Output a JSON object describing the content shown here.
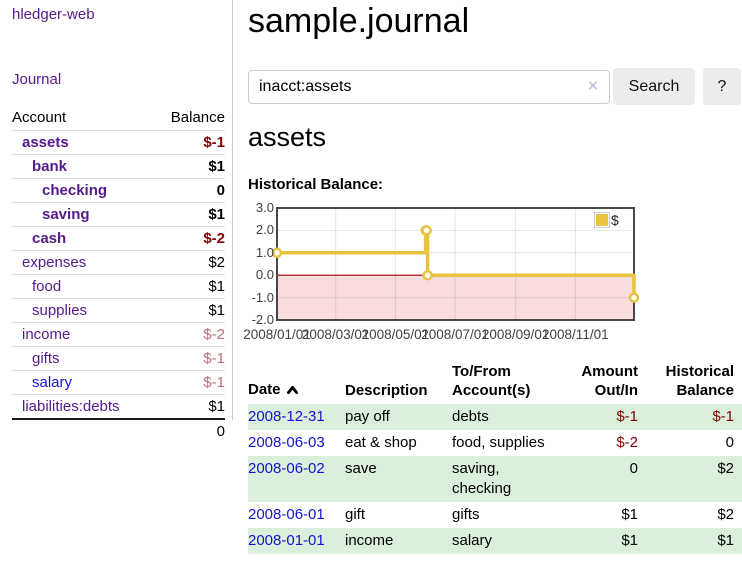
{
  "colors": {
    "link_purple": "#551a8b",
    "link_blue": "#1414d4",
    "negative_strong": "#880000",
    "negative_soft": "#c06c7c",
    "row_highlight_green": "#dceedc",
    "series_yellow": "#e8c33f",
    "zero_line_red": "#990000",
    "negative_region_pink": "#f9dcdc",
    "button_gray": "#ececec"
  },
  "icons": {
    "sort": "chevron-up-icon",
    "clear_search": "x-icon",
    "legend_swatch": "yellow-square-icon"
  },
  "sidebar": {
    "app_title": "hledger-web",
    "journal_link": "Journal",
    "accounts": {
      "col_account": "Account",
      "col_balance": "Balance",
      "rows": [
        {
          "name": "assets",
          "depth": 1,
          "bold": true,
          "link_color": "purple",
          "balance": "$-1",
          "balance_class": "neg-strong b"
        },
        {
          "name": "bank",
          "depth": 2,
          "bold": true,
          "link_color": "purple",
          "balance": "$1",
          "balance_class": "b"
        },
        {
          "name": "checking",
          "depth": 3,
          "bold": true,
          "link_color": "purple",
          "balance": "0",
          "balance_class": "b"
        },
        {
          "name": "saving",
          "depth": 3,
          "bold": true,
          "link_color": "purple",
          "balance": "$1",
          "balance_class": "b"
        },
        {
          "name": "cash",
          "depth": 2,
          "bold": true,
          "link_color": "purple",
          "balance": "$-2",
          "balance_class": "neg-strong b"
        },
        {
          "name": "expenses",
          "depth": 1,
          "bold": false,
          "link_color": "purple",
          "balance": "$2",
          "balance_class": ""
        },
        {
          "name": "food",
          "depth": 2,
          "bold": false,
          "link_color": "purple",
          "balance": "$1",
          "balance_class": ""
        },
        {
          "name": "supplies",
          "depth": 2,
          "bold": false,
          "link_color": "purple",
          "balance": "$1",
          "balance_class": ""
        },
        {
          "name": "income",
          "depth": 1,
          "bold": false,
          "link_color": "purple",
          "balance": "$-2",
          "balance_class": "neg-soft"
        },
        {
          "name": "gifts",
          "depth": 2,
          "bold": false,
          "link_color": "purple",
          "balance": "$-1",
          "balance_class": "neg-soft"
        },
        {
          "name": "salary",
          "depth": 2,
          "bold": false,
          "link_color": "blue",
          "balance": "$-1",
          "balance_class": "neg-soft"
        },
        {
          "name": "liabilities:debts",
          "depth": 1,
          "bold": false,
          "link_color": "purple",
          "balance": "$1",
          "balance_class": ""
        }
      ],
      "total": "0"
    }
  },
  "main": {
    "title": "sample.journal",
    "search": {
      "value": "inacct:assets",
      "clear_glyph": "×",
      "button_label": "Search",
      "help_label": "?"
    },
    "account_heading": "assets",
    "chart_title": "Historical Balance:"
  },
  "chart_data": {
    "type": "line",
    "step": true,
    "title": "Historical Balance:",
    "series": [
      {
        "name": "$",
        "color": "#e8c33f",
        "points": [
          [
            "2008/01/01",
            1
          ],
          [
            "2008/06/01",
            2
          ],
          [
            "2008/06/02",
            2
          ],
          [
            "2008/06/03",
            0
          ],
          [
            "2008/12/31",
            -1
          ]
        ]
      }
    ],
    "x_range": [
      "2008/01/01",
      "2008/12/31"
    ],
    "ylim": [
      -2,
      3
    ],
    "y_ticks": [
      "3.0",
      "2.0",
      "1.0",
      "0.0",
      "-1.0",
      "-2.0"
    ],
    "x_ticks": [
      "2008/01/01",
      "2008/03/01",
      "2008/05/01",
      "2008/07/01",
      "2008/09/01",
      "2008/11/01"
    ],
    "grid": true,
    "legend_position": "top-right",
    "legend_label": "$",
    "negative_region_shaded": true
  },
  "register": {
    "headers": {
      "date": "Date",
      "description": "Description",
      "tofrom": "To/From Account(s)",
      "amount": "Amount Out/In",
      "balance": "Historical Balance"
    },
    "rows": [
      {
        "date": "2008-12-31",
        "description": "pay off",
        "accounts": "debts",
        "amount": "$-1",
        "amount_neg": true,
        "balance": "$-1",
        "balance_neg": true,
        "highlight": true
      },
      {
        "date": "2008-06-03",
        "description": "eat & shop",
        "accounts": "food, supplies",
        "amount": "$-2",
        "amount_neg": true,
        "balance": "0",
        "balance_neg": false,
        "highlight": false
      },
      {
        "date": "2008-06-02",
        "description": "save",
        "accounts": "saving, checking",
        "amount": "0",
        "amount_neg": false,
        "balance": "$2",
        "balance_neg": false,
        "highlight": true
      },
      {
        "date": "2008-06-01",
        "description": "gift",
        "accounts": "gifts",
        "amount": "$1",
        "amount_neg": false,
        "balance": "$2",
        "balance_neg": false,
        "highlight": false
      },
      {
        "date": "2008-01-01",
        "description": "income",
        "accounts": "salary",
        "amount": "$1",
        "amount_neg": false,
        "balance": "$1",
        "balance_neg": false,
        "highlight": true
      }
    ]
  }
}
